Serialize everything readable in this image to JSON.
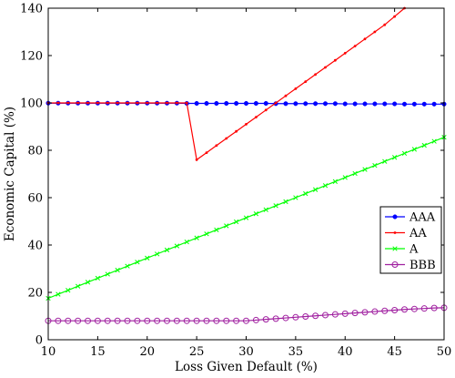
{
  "chart_data": {
    "type": "line",
    "title": "",
    "xlabel": "Loss Given Default (%)",
    "ylabel": "Economic Capital (%)",
    "xlim": [
      10,
      50
    ],
    "ylim": [
      0,
      140
    ],
    "xticks": [
      10,
      15,
      20,
      25,
      30,
      35,
      40,
      45,
      50
    ],
    "yticks": [
      0,
      20,
      40,
      60,
      80,
      100,
      120,
      140
    ],
    "grid": false,
    "legend_position": "lower-right",
    "series": [
      {
        "name": "AAA",
        "color": "#0000ff",
        "marker": "filled-circle",
        "x": [
          10,
          11,
          12,
          13,
          14,
          15,
          16,
          17,
          18,
          19,
          20,
          21,
          22,
          23,
          24,
          25,
          26,
          27,
          28,
          29,
          30,
          31,
          32,
          33,
          34,
          35,
          36,
          37,
          38,
          39,
          40,
          41,
          42,
          43,
          44,
          45,
          46,
          47,
          48,
          49,
          50
        ],
        "y": [
          99.9,
          99.9,
          99.9,
          99.9,
          99.9,
          99.9,
          99.9,
          99.9,
          99.9,
          99.9,
          99.9,
          99.9,
          99.9,
          99.9,
          99.8,
          99.8,
          99.8,
          99.8,
          99.8,
          99.8,
          99.8,
          99.8,
          99.8,
          99.7,
          99.7,
          99.7,
          99.7,
          99.7,
          99.7,
          99.7,
          99.6,
          99.6,
          99.6,
          99.6,
          99.6,
          99.6,
          99.5,
          99.5,
          99.5,
          99.5,
          99.5
        ]
      },
      {
        "name": "AA",
        "color": "#ff0000",
        "marker": "filled-dot",
        "x": [
          10,
          11,
          12,
          13,
          14,
          15,
          16,
          17,
          18,
          19,
          20,
          21,
          22,
          23,
          24,
          25,
          26,
          27,
          28,
          29,
          30,
          31,
          32,
          33,
          34,
          35,
          36,
          37,
          38,
          39,
          40,
          41,
          42,
          43,
          44,
          45,
          46
        ],
        "y": [
          100,
          100,
          100,
          100,
          100,
          100,
          100,
          100,
          100,
          100,
          100,
          100,
          100,
          100,
          100,
          76,
          79,
          82,
          85,
          88,
          91,
          94,
          97,
          100,
          103,
          106,
          109,
          112,
          115,
          118,
          121,
          124,
          127,
          130,
          133,
          136.5,
          140
        ]
      },
      {
        "name": "A",
        "color": "#00ff00",
        "marker": "x",
        "x": [
          10,
          11,
          12,
          13,
          14,
          15,
          16,
          17,
          18,
          19,
          20,
          21,
          22,
          23,
          24,
          25,
          26,
          27,
          28,
          29,
          30,
          31,
          32,
          33,
          34,
          35,
          36,
          37,
          38,
          39,
          40,
          41,
          42,
          43,
          44,
          45,
          46,
          47,
          48,
          49,
          50
        ],
        "y": [
          17.5,
          19.2,
          20.9,
          22.6,
          24.3,
          26,
          27.7,
          29.4,
          31.1,
          32.8,
          34.5,
          36.2,
          37.9,
          39.6,
          41.3,
          43,
          44.7,
          46.4,
          48.1,
          49.8,
          51.5,
          53.2,
          54.9,
          56.6,
          58.3,
          60,
          61.7,
          63.4,
          65.1,
          66.8,
          68.5,
          70.2,
          71.9,
          73.6,
          75.3,
          77,
          78.7,
          80.4,
          82.1,
          83.8,
          85.5
        ]
      },
      {
        "name": "BBB",
        "color": "#a020a0",
        "marker": "open-circle",
        "x": [
          10,
          11,
          12,
          13,
          14,
          15,
          16,
          17,
          18,
          19,
          20,
          21,
          22,
          23,
          24,
          25,
          26,
          27,
          28,
          29,
          30,
          31,
          32,
          33,
          34,
          35,
          36,
          37,
          38,
          39,
          40,
          41,
          42,
          43,
          44,
          45,
          46,
          47,
          48,
          49,
          50
        ],
        "y": [
          8,
          8,
          8,
          8,
          8,
          8,
          8,
          8,
          8,
          8,
          8,
          8,
          8,
          8,
          8,
          8,
          8,
          8,
          8,
          8,
          8,
          8.3,
          8.6,
          8.9,
          9.2,
          9.5,
          9.8,
          10.1,
          10.4,
          10.7,
          11,
          11.3,
          11.6,
          11.9,
          12.2,
          12.5,
          12.8,
          13,
          13.2,
          13.4,
          13.5
        ]
      }
    ]
  }
}
